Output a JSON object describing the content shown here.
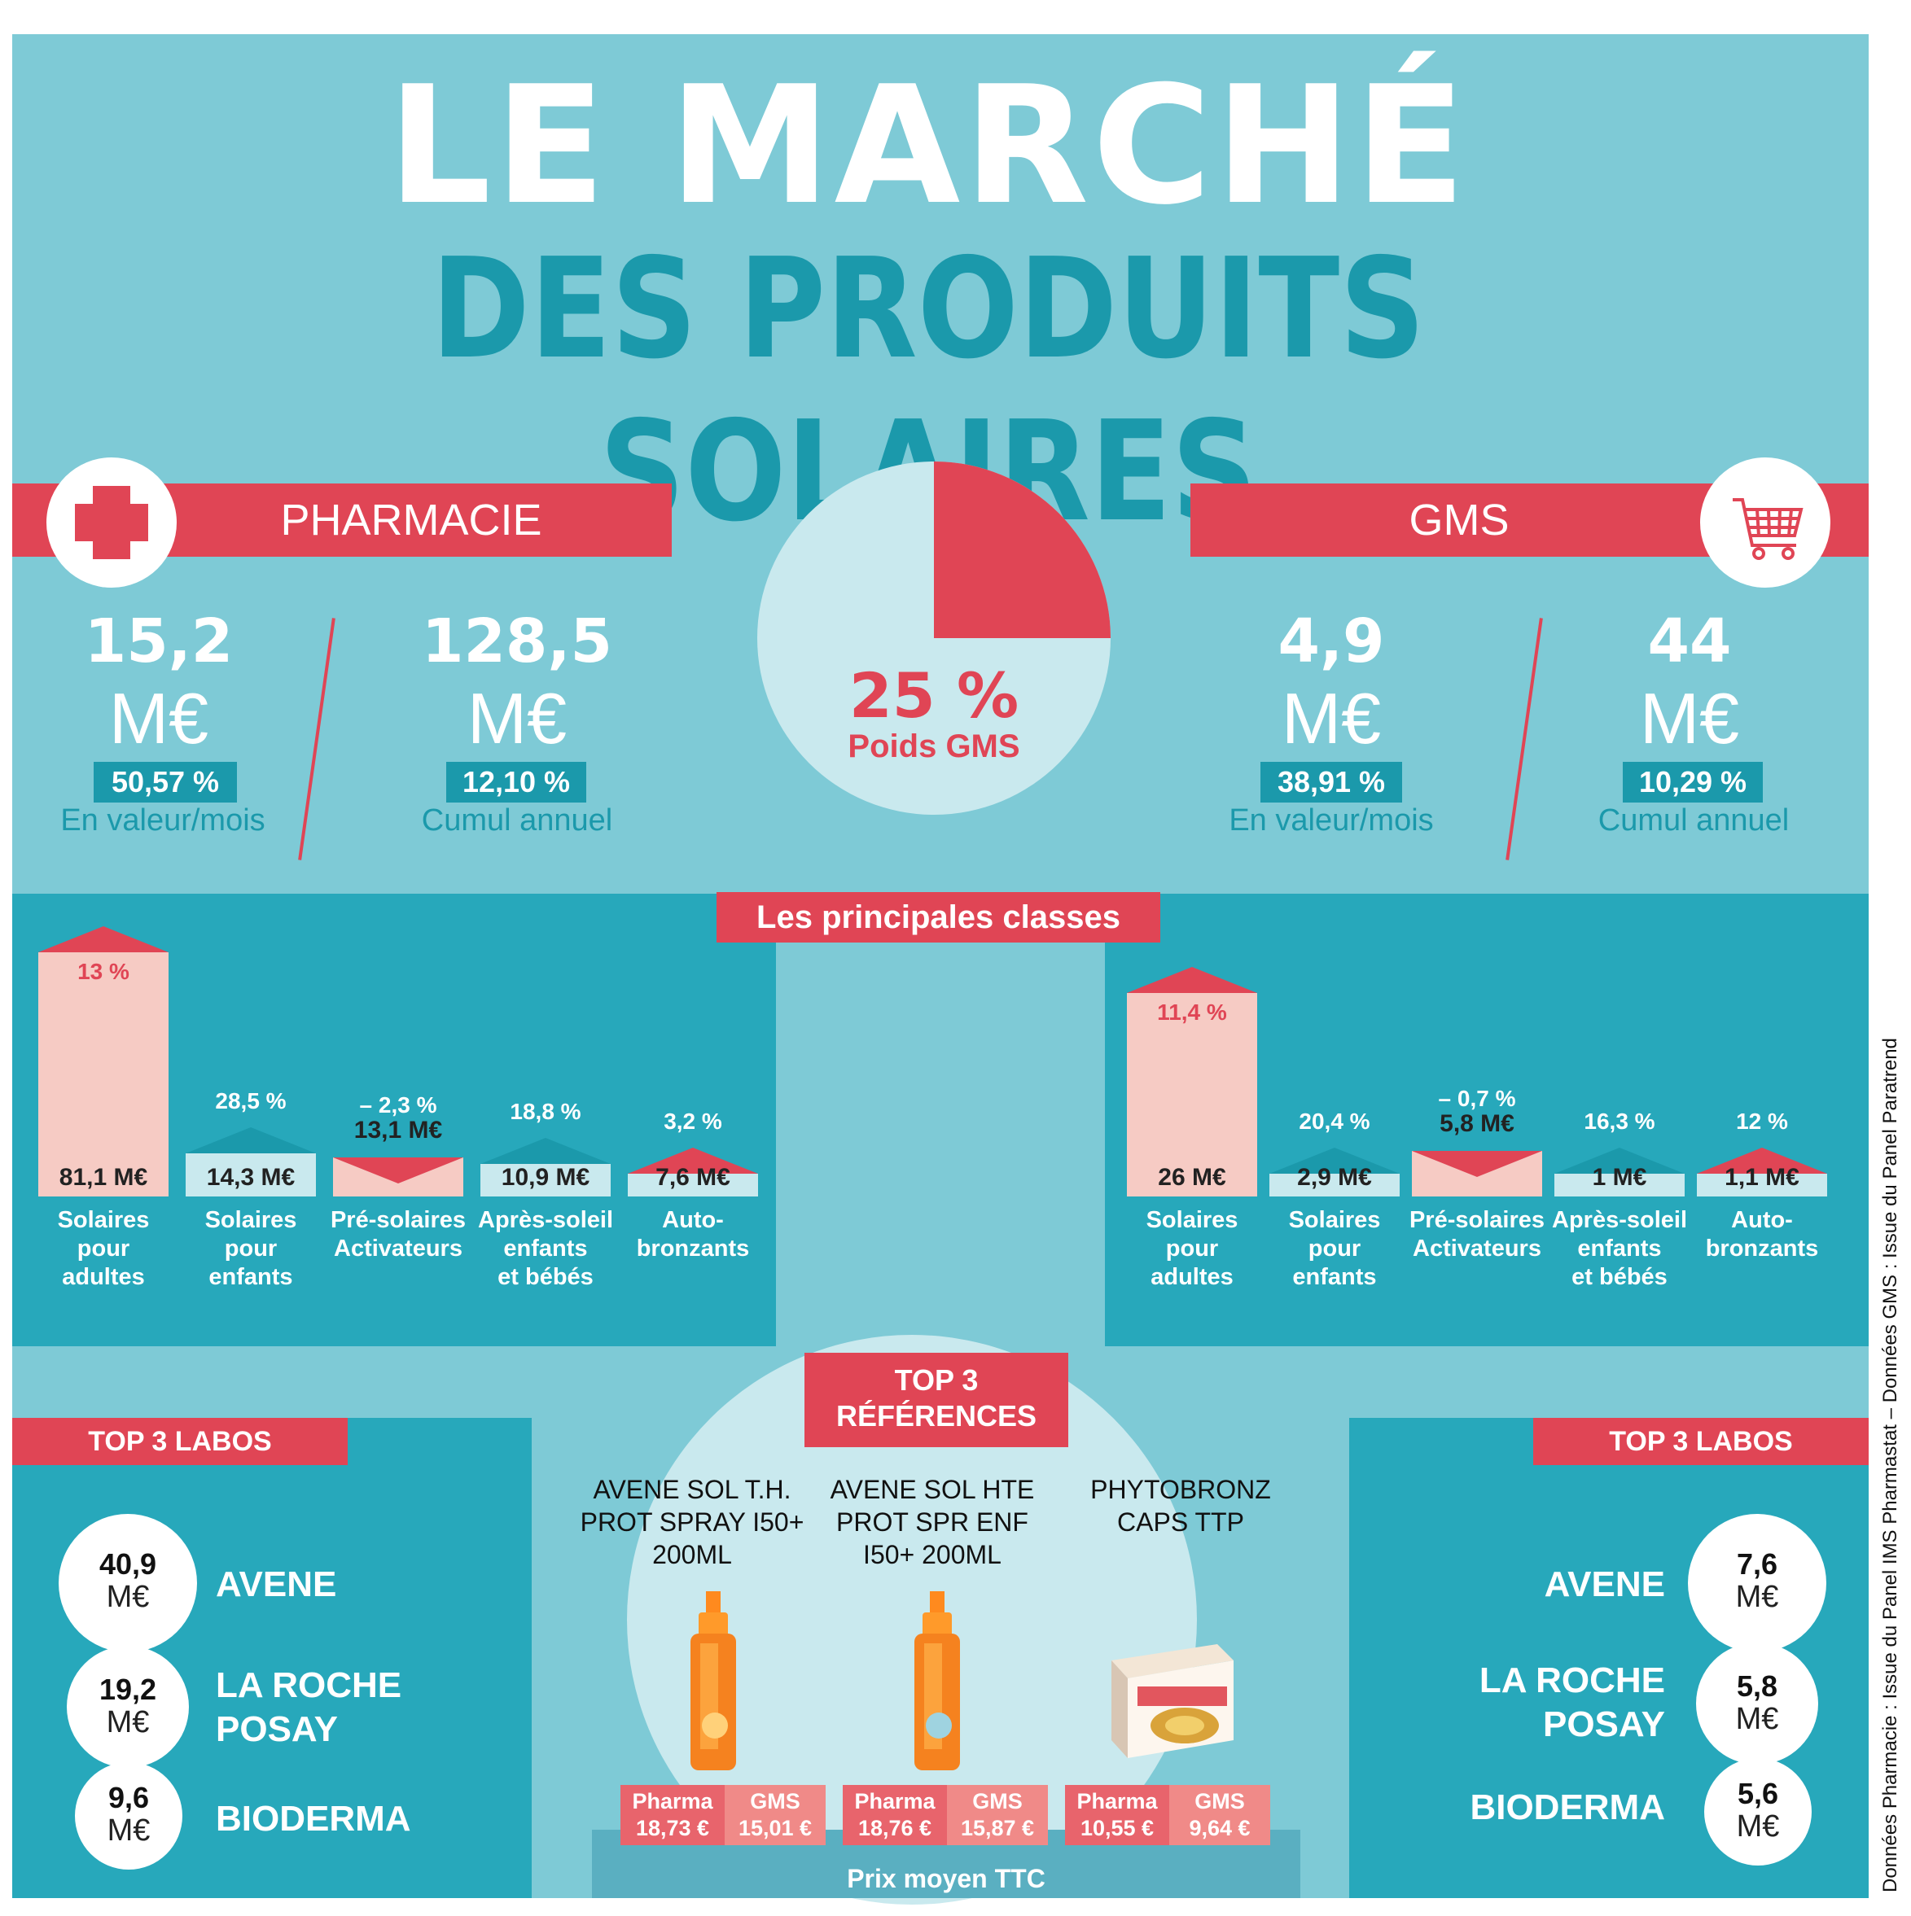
{
  "title": {
    "line1": "LE MARCHÉ",
    "line2": "DES PRODUITS SOLAIRES"
  },
  "pharmacie": {
    "label": "PHARMACIE",
    "icon": "cross-icon",
    "month": {
      "value": "15,2",
      "unit": "M€",
      "pct": "50,57 %",
      "label": "En valeur/mois"
    },
    "year": {
      "value": "128,5",
      "unit": "M€",
      "pct": "12,10 %",
      "label": "Cumul annuel"
    }
  },
  "gms": {
    "label": "GMS",
    "icon": "shopping-cart-icon",
    "month": {
      "value": "4,9",
      "unit": "M€",
      "pct": "38,91 %",
      "label": "En valeur/mois"
    },
    "year": {
      "value": "44",
      "unit": "M€",
      "pct": "10,29 %",
      "label": "Cumul annuel"
    }
  },
  "pie": {
    "pct_label": "25 %",
    "caption": "Poids GMS",
    "share": 0.25,
    "colors": {
      "share": "#e04555",
      "rest": "#c9e9ee"
    }
  },
  "classes": {
    "title": "Les principales classes",
    "pharmacie": [
      {
        "label": [
          "Solaires",
          "pour",
          "adultes"
        ],
        "value": "81,1 M€",
        "pct": "13 %",
        "amount": 81.1,
        "trend": "up"
      },
      {
        "label": [
          "Solaires",
          "pour",
          "enfants"
        ],
        "value": "14,3 M€",
        "pct": "28,5 %",
        "amount": 14.3,
        "trend": "up"
      },
      {
        "label": [
          "Pré-solaires",
          "Activateurs"
        ],
        "value": "13,1 M€",
        "pct": "– 2,3 %",
        "amount": 13.1,
        "trend": "down"
      },
      {
        "label": [
          "Après-soleil",
          "enfants",
          "et bébés"
        ],
        "value": "10,9 M€",
        "pct": "18,8 %",
        "amount": 10.9,
        "trend": "up"
      },
      {
        "label": [
          "Auto-",
          "bronzants"
        ],
        "value": "7,6 M€",
        "pct": "3,2 %",
        "amount": 7.6,
        "trend": "up"
      }
    ],
    "gms": [
      {
        "label": [
          "Solaires",
          "pour",
          "adultes"
        ],
        "value": "26 M€",
        "pct": "11,4 %",
        "amount": 26,
        "trend": "up"
      },
      {
        "label": [
          "Solaires",
          "pour",
          "enfants"
        ],
        "value": "2,9 M€",
        "pct": "20,4 %",
        "amount": 2.9,
        "trend": "up"
      },
      {
        "label": [
          "Pré-solaires",
          "Activateurs"
        ],
        "value": "5,8 M€",
        "pct": "– 0,7 %",
        "amount": 5.8,
        "trend": "down"
      },
      {
        "label": [
          "Après-soleil",
          "enfants",
          "et bébés"
        ],
        "value": "1 M€",
        "pct": "16,3 %",
        "amount": 1,
        "trend": "up"
      },
      {
        "label": [
          "Auto-",
          "bronzants"
        ],
        "value": "1,1 M€",
        "pct": "12 %",
        "amount": 1.1,
        "trend": "up"
      }
    ]
  },
  "top3_labos_left": {
    "title": "TOP 3 LABOS",
    "items": [
      {
        "value": "40,9",
        "unit": "M€",
        "name": [
          "AVENE"
        ]
      },
      {
        "value": "19,2",
        "unit": "M€",
        "name": [
          "LA ROCHE",
          "POSAY"
        ]
      },
      {
        "value": "9,6",
        "unit": "M€",
        "name": [
          "BIODERMA"
        ]
      }
    ]
  },
  "top3_labos_right": {
    "title": "TOP 3 LABOS",
    "items": [
      {
        "value": "7,6",
        "unit": "M€",
        "name": [
          "AVENE"
        ]
      },
      {
        "value": "5,8",
        "unit": "M€",
        "name": [
          "LA ROCHE",
          "POSAY"
        ]
      },
      {
        "value": "5,6",
        "unit": "M€",
        "name": [
          "BIODERMA"
        ]
      }
    ]
  },
  "top3_refs": {
    "title": [
      "TOP 3",
      "RÉFÉRENCES"
    ],
    "footer": "Prix moyen TTC",
    "items": [
      {
        "name": [
          "AVENE SOL T.H.",
          "PROT SPRAY I50+",
          "200ML"
        ],
        "pharma_label": "Pharma",
        "gms_label": "GMS",
        "pharma": "18,73 €",
        "gms": "15,01 €",
        "product": "spray-bottle"
      },
      {
        "name": [
          "AVENE SOL HTE",
          "PROT SPR ENF",
          "I50+ 200ML"
        ],
        "pharma_label": "Pharma",
        "gms_label": "GMS",
        "pharma": "18,76 €",
        "gms": "15,87 €",
        "product": "spray-bottle"
      },
      {
        "name": [
          "PHYTOBRONZ",
          "CAPS TTP"
        ],
        "pharma_label": "Pharma",
        "gms_label": "GMS",
        "pharma": "10,55 €",
        "gms": "9,64 €",
        "product": "capsule-box"
      }
    ]
  },
  "source": "Données Pharmacie : Issue du Panel IMS Pharmastat – Données GMS : Issue du Panel Paratrend"
}
